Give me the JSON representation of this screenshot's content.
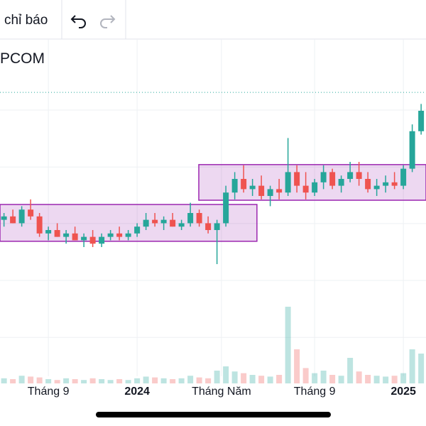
{
  "toolbar": {
    "label": "chỉ báo"
  },
  "chart_data": {
    "type": "candlestick",
    "title": "PCOM",
    "x": [
      7.0,
      7.4,
      7.8,
      8.2,
      8.6,
      9.0,
      9.4,
      9.8,
      10.2,
      10.6,
      11.0,
      11.4,
      11.8,
      12.2,
      12.6,
      13.0,
      13.4,
      13.8,
      14.2,
      14.6,
      15.0,
      15.4,
      15.8,
      16.2,
      16.6,
      17.0,
      17.4,
      17.8,
      18.2,
      18.6,
      19.0,
      19.4,
      19.8,
      20.2,
      20.6,
      21.0,
      21.4,
      21.8,
      22.2,
      22.6,
      23.0,
      23.4,
      23.8,
      24.2,
      24.6,
      25.0,
      25.4,
      25.8
    ],
    "open": [
      48,
      49,
      47,
      51,
      49,
      44,
      45,
      43,
      44,
      42,
      43,
      41,
      43,
      44,
      43,
      44,
      46,
      48,
      47,
      48,
      46,
      47,
      50,
      47,
      45,
      47,
      56,
      60,
      57,
      58,
      55,
      57,
      56,
      62,
      58,
      56,
      59,
      62,
      58,
      60,
      62,
      60,
      57,
      58,
      59,
      58,
      63,
      74
    ],
    "high": [
      50,
      51,
      52,
      54,
      50,
      46,
      47,
      45,
      46,
      44,
      45,
      44,
      45,
      46,
      45,
      47,
      50,
      50,
      49,
      50,
      48,
      53,
      51,
      49,
      48,
      58,
      62,
      64,
      60,
      61,
      58,
      60,
      72,
      64,
      62,
      60,
      64,
      63,
      61,
      65,
      65,
      62,
      60,
      61,
      62,
      64,
      76,
      82
    ],
    "low": [
      46,
      47,
      46,
      48,
      43,
      42,
      43,
      41,
      42,
      40,
      40,
      40,
      42,
      42,
      42,
      43,
      45,
      46,
      45,
      46,
      45,
      46,
      46,
      44,
      35,
      46,
      54,
      56,
      55,
      54,
      52,
      54,
      55,
      56,
      54,
      55,
      57,
      57,
      56,
      59,
      58,
      56,
      55,
      56,
      57,
      57,
      62,
      73
    ],
    "close": [
      49,
      47,
      51,
      49,
      44,
      45,
      43,
      44,
      42,
      43,
      41,
      43,
      44,
      43,
      44,
      46,
      48,
      47,
      48,
      46,
      47,
      50,
      47,
      45,
      47,
      56,
      60,
      57,
      58,
      55,
      57,
      56,
      62,
      58,
      56,
      59,
      62,
      58,
      60,
      62,
      60,
      57,
      58,
      59,
      58,
      63,
      74,
      80
    ],
    "volume": [
      6,
      5,
      9,
      8,
      7,
      5,
      4,
      6,
      5,
      4,
      6,
      5,
      4,
      5,
      4,
      6,
      8,
      7,
      6,
      5,
      6,
      9,
      7,
      6,
      15,
      20,
      14,
      12,
      10,
      9,
      8,
      10,
      90,
      40,
      18,
      12,
      15,
      10,
      9,
      30,
      14,
      10,
      9,
      8,
      9,
      12,
      40,
      35
    ],
    "xlim": [
      6.82,
      26.02
    ],
    "xticks": [
      {
        "value": 9,
        "label": "Tháng 9"
      },
      {
        "value": 13,
        "label": "2024"
      },
      {
        "value": 16.8,
        "label": "Tháng Năm"
      },
      {
        "value": 21,
        "label": "Tháng 9"
      },
      {
        "value": 25,
        "label": "2025"
      }
    ],
    "ylim": [
      0,
      100
    ],
    "y2lim": [
      0,
      400
    ],
    "ygrid": [
      80.2,
      63.5,
      46.9,
      30.2,
      13.5
    ],
    "price_line": 85.4,
    "boxes": [
      {
        "x": [
          6.82,
          18.4
        ],
        "y": [
          41.7,
          52.5
        ]
      },
      {
        "x": [
          15.78,
          26.02
        ],
        "y": [
          53.75,
          64.2
        ]
      }
    ],
    "up_color": "#26a69a",
    "down_color": "#ef5350",
    "box_color": "#9c27b0",
    "grid": true
  }
}
